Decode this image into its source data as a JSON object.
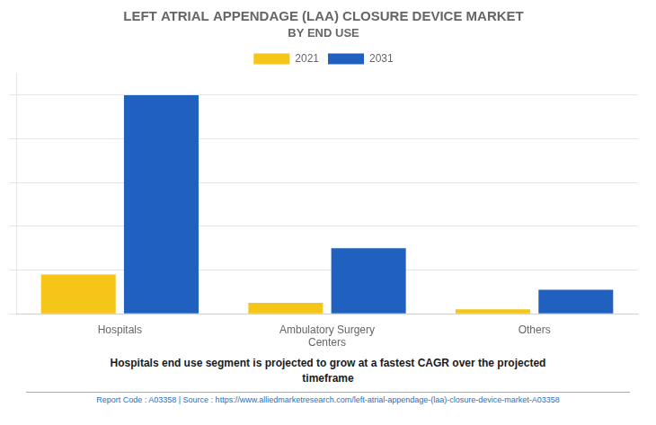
{
  "chart_data": {
    "type": "bar",
    "title": "LEFT ATRIAL APPENDAGE (LAA) CLOSURE DEVICE MARKET",
    "subtitle": "BY END USE",
    "categories": [
      "Hospitals",
      "Ambulatory Surgery\nCenters",
      "Others"
    ],
    "series": [
      {
        "name": "2021",
        "color": "#F5C518",
        "values": [
          18,
          5,
          2
        ]
      },
      {
        "name": "2031",
        "color": "#2060BF",
        "values": [
          100,
          30,
          11
        ]
      }
    ],
    "ylim": [
      0,
      110
    ],
    "yticks": [
      0,
      20,
      40,
      60,
      80,
      100
    ],
    "grid": true,
    "legend": "top",
    "tick_labels": "x",
    "annotations": [
      "Hospitals end use segment is projected to grow at a fastest CAGR over the projected\ntimeframe",
      "Report Code : A03358  |  Source : https://www.alliedmarketresearch.com/left-atrial-appendage-(laa)-closure-device-market-A03358"
    ]
  }
}
